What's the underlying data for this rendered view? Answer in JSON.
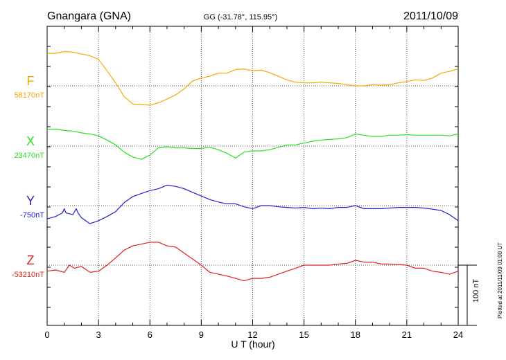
{
  "header": {
    "station": "Gnangara (GNA)",
    "coords": "GG (-31.78°, 115.95°)",
    "date": "2011/10/09"
  },
  "side_note": "Plotted at 2011/11/09 01:00 UT",
  "scale_bar_label": "100 nT",
  "chart_data": {
    "type": "line",
    "xlabel": "U T (hour)",
    "xlim": [
      0,
      24
    ],
    "xticks": [
      0,
      3,
      6,
      9,
      12,
      15,
      18,
      21,
      24
    ],
    "grid": true,
    "scale_nT": 100,
    "series": [
      {
        "name": "F",
        "baseline_label": "58170nT",
        "color": "#f5a800",
        "x": [
          0,
          0.5,
          1,
          1.5,
          2,
          2.5,
          3,
          3.5,
          4,
          4.5,
          5,
          5.5,
          6,
          6.5,
          7,
          7.5,
          8,
          8.5,
          9,
          9.5,
          10,
          10.5,
          11,
          11.5,
          12,
          12.5,
          13,
          13.5,
          14,
          14.5,
          15,
          15.5,
          16,
          16.5,
          17,
          17.5,
          18,
          18.5,
          19,
          19.5,
          20,
          20.5,
          21,
          21.5,
          22,
          22.5,
          23,
          23.5,
          24
        ],
        "values": [
          54,
          54,
          57,
          56,
          53,
          50,
          44,
          25,
          5,
          -18,
          -30,
          -31,
          -32,
          -28,
          -22,
          -15,
          -5,
          8,
          13,
          16,
          21,
          21,
          27,
          28,
          25,
          26,
          22,
          16,
          10,
          6,
          5,
          5,
          6,
          5,
          4,
          2,
          0,
          0,
          2,
          1,
          2,
          5,
          7,
          10,
          9,
          13,
          21,
          24,
          28
        ]
      },
      {
        "name": "X",
        "baseline_label": "23470nT",
        "color": "#28e028",
        "x": [
          0,
          0.5,
          1,
          1.5,
          2,
          2.5,
          3,
          3.5,
          4,
          4.5,
          5,
          5.5,
          6,
          6.5,
          7,
          7.5,
          8,
          8.5,
          9,
          9.5,
          10,
          10.5,
          11,
          11.5,
          12,
          12.5,
          13,
          13.5,
          14,
          14.5,
          15,
          15.5,
          16,
          16.5,
          17,
          17.5,
          18,
          18.5,
          19,
          19.5,
          20,
          20.5,
          21,
          21.5,
          22,
          22.5,
          23,
          23.5,
          24
        ],
        "values": [
          28,
          28,
          26,
          25,
          22,
          20,
          17,
          10,
          2,
          -10,
          -18,
          -22,
          -15,
          -3,
          -1,
          -3,
          -3,
          -4,
          -4,
          -2,
          -6,
          -12,
          -20,
          -10,
          -8,
          -8,
          -6,
          -2,
          2,
          2,
          5,
          8,
          10,
          11,
          12,
          14,
          20,
          18,
          16,
          16,
          18,
          18,
          19,
          18,
          18,
          18,
          18,
          17,
          20
        ]
      },
      {
        "name": "Y",
        "baseline_label": "-750nT",
        "color": "#2020d0",
        "x": [
          0,
          0.5,
          0.9,
          1,
          1.1,
          1.5,
          1.7,
          1.8,
          2,
          2.5,
          3,
          3.5,
          4,
          4.5,
          5,
          5.5,
          6,
          6.5,
          7,
          7.5,
          8,
          8.5,
          9,
          9.5,
          10,
          10.5,
          11,
          11.5,
          12,
          12.5,
          13,
          13.5,
          14,
          14.5,
          15,
          15.5,
          16,
          16.5,
          17,
          17.5,
          18,
          18.5,
          19,
          19.5,
          20,
          20.5,
          21,
          21.5,
          22,
          22.5,
          23,
          23.5,
          24
        ],
        "values": [
          -22,
          -18,
          -12,
          -5,
          -12,
          -15,
          -5,
          -12,
          -20,
          -30,
          -25,
          -18,
          -10,
          5,
          15,
          20,
          25,
          28,
          34,
          32,
          28,
          22,
          16,
          10,
          6,
          3,
          3,
          -2,
          -5,
          0,
          0,
          -2,
          -3,
          -4,
          -3,
          -5,
          -4,
          -5,
          -3,
          -3,
          0,
          -5,
          -5,
          -5,
          -4,
          -3,
          -3,
          -3,
          -4,
          -6,
          -8,
          -15,
          -25
        ]
      },
      {
        "name": "Z",
        "baseline_label": "-53210nT",
        "color": "#e02020",
        "x": [
          0,
          0.5,
          1,
          1.3,
          1.6,
          2,
          2.5,
          3,
          3.5,
          4,
          4.5,
          5,
          5.5,
          6,
          6.5,
          7,
          7.5,
          8,
          8.5,
          9,
          9.5,
          10,
          10.5,
          11,
          11.5,
          12,
          12.5,
          13,
          13.5,
          14,
          14.5,
          15,
          15.5,
          16,
          16.5,
          17,
          17.5,
          18,
          18.5,
          19,
          19.5,
          20,
          20.5,
          21,
          21.5,
          22,
          22.5,
          23,
          23.5,
          24
        ],
        "values": [
          -10,
          -8,
          -12,
          0,
          -5,
          -2,
          -12,
          -10,
          0,
          12,
          25,
          32,
          35,
          38,
          38,
          32,
          30,
          20,
          10,
          0,
          -12,
          -15,
          -18,
          -22,
          -26,
          -22,
          -22,
          -20,
          -15,
          -10,
          -5,
          0,
          0,
          0,
          0,
          2,
          3,
          8,
          5,
          5,
          2,
          2,
          1,
          0,
          -5,
          -5,
          -10,
          -12,
          -15,
          -10
        ]
      }
    ]
  }
}
